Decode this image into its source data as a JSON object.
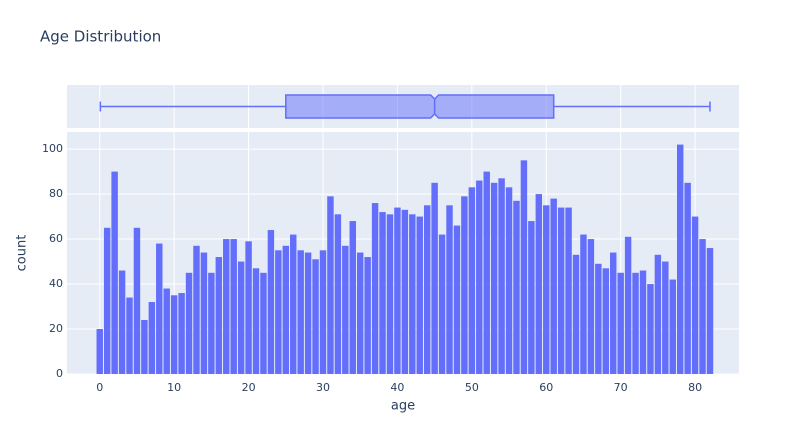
{
  "chart_data": {
    "type": "histogram",
    "title": "Age Distribution",
    "xlabel": "age",
    "ylabel": "count",
    "color": "#636efa",
    "bins": [
      -0.5,
      0.5,
      1.5,
      2.5,
      3.5,
      4.5,
      5.5,
      6.5,
      7.5,
      8.5,
      9.5,
      10.5,
      11.5,
      12.5,
      13.5,
      14.5,
      15.5,
      16.5,
      17.5,
      18.5,
      19.5,
      20.5,
      21.5,
      22.5,
      23.5,
      24.5,
      25.5,
      26.5,
      27.5,
      28.5,
      29.5,
      30.5,
      31.5,
      32.5,
      33.5,
      34.5,
      35.5,
      36.5,
      37.5,
      38.5,
      39.5,
      40.5,
      41.5,
      42.5,
      43.5,
      44.5,
      45.5,
      46.5,
      47.5,
      48.5,
      49.5,
      50.5,
      51.5,
      52.5,
      53.5,
      54.5,
      55.5,
      56.5,
      57.5,
      58.5,
      59.5,
      60.5,
      61.5,
      62.5,
      63.5,
      64.5,
      65.5,
      66.5,
      67.5,
      68.5,
      69.5,
      70.5,
      71.5,
      72.5,
      73.5,
      74.5,
      75.5,
      76.5,
      77.5,
      78.5,
      79.5,
      80.5,
      81.5,
      82.5
    ],
    "values": [
      20,
      65,
      90,
      46,
      34,
      65,
      24,
      32,
      58,
      38,
      35,
      36,
      45,
      57,
      54,
      45,
      52,
      60,
      60,
      50,
      59,
      47,
      45,
      64,
      55,
      57,
      62,
      55,
      54,
      51,
      55,
      79,
      71,
      57,
      68,
      54,
      52,
      76,
      72,
      71,
      74,
      73,
      71,
      70,
      75,
      85,
      62,
      75,
      66,
      79,
      83,
      86,
      90,
      85,
      87,
      83,
      77,
      95,
      68,
      80,
      75,
      78,
      74,
      74,
      53,
      62,
      60,
      49,
      47,
      54,
      45,
      61,
      45,
      46,
      40,
      53,
      50,
      42,
      102,
      85,
      70,
      60,
      56
    ],
    "box": {
      "min": 0.08,
      "q1": 25,
      "median": 45,
      "q3": 61,
      "max": 82
    },
    "xlim": [
      -4.4,
      85.9
    ],
    "ylim": [
      0,
      107.6
    ],
    "xticks": [
      0,
      10,
      20,
      30,
      40,
      50,
      60,
      70,
      80
    ],
    "yticks": [
      0,
      20,
      40,
      60,
      80,
      100
    ],
    "grid": true
  }
}
